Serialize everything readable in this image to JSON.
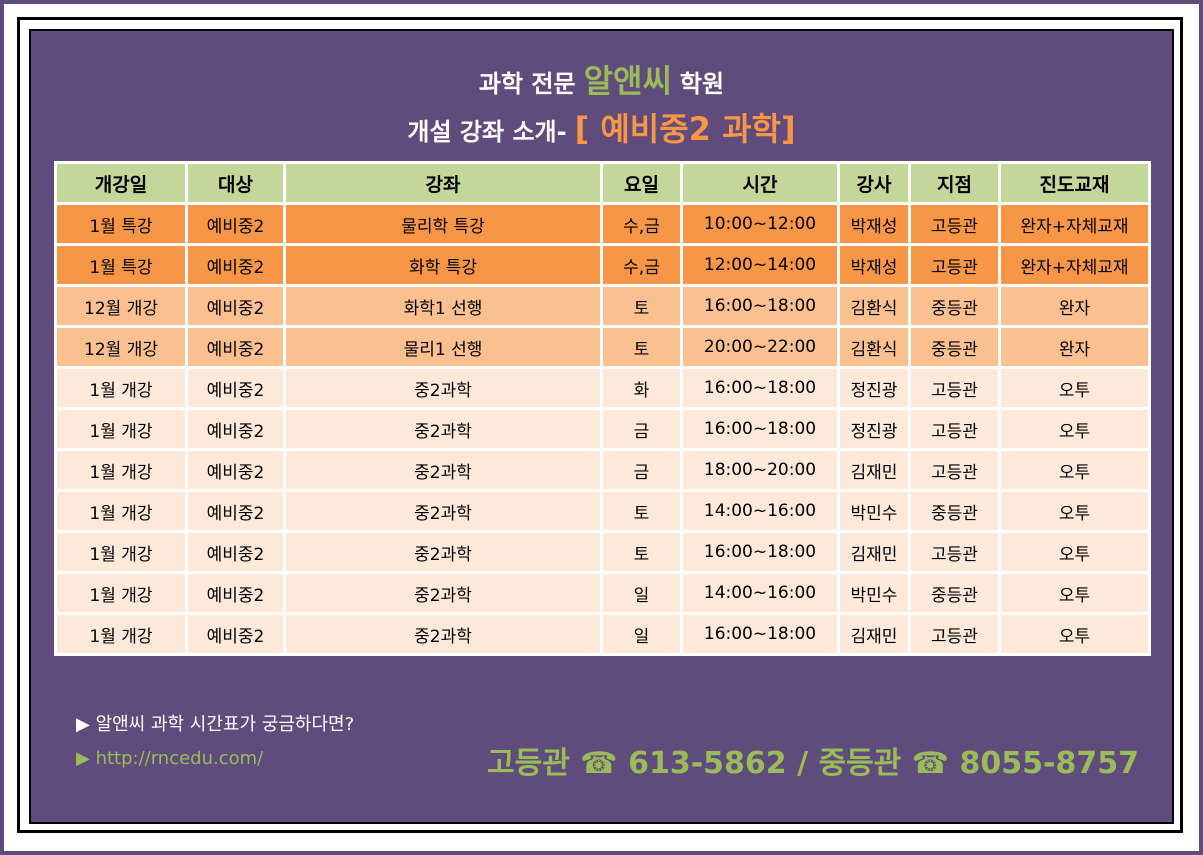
{
  "header": {
    "line1": [
      "과학 전문",
      "알앤씨",
      "학원"
    ],
    "line2": [
      "개설 강좌 소개-",
      "[ 예비중2 과학]"
    ]
  },
  "table": {
    "columns": [
      "개강일",
      "대상",
      "강좌",
      "요일",
      "시간",
      "강사",
      "지점",
      "진도교재"
    ],
    "header_color": "#c4d79b",
    "row_colors": [
      "#f79646",
      "#f79646",
      "#fac090",
      "#fac090",
      "#fde9d9",
      "#fde9d9",
      "#fde9d9",
      "#fde9d9",
      "#fde9d9",
      "#fde9d9",
      "#fde9d9"
    ],
    "rows": [
      [
        "1월 특강",
        "예비중2",
        "물리학 특강",
        "수,금",
        "10:00~12:00",
        "박재성",
        "고등관",
        "완자+자체교재"
      ],
      [
        "1월 특강",
        "예비중2",
        "화학 특강",
        "수,금",
        "12:00~14:00",
        "박재성",
        "고등관",
        "완자+자체교재"
      ],
      [
        "12월 개강",
        "예비중2",
        "화학1 선행",
        "토",
        "16:00~18:00",
        "김환식",
        "중등관",
        "완자"
      ],
      [
        "12월 개강",
        "예비중2",
        "물리1 선행",
        "토",
        "20:00~22:00",
        "김환식",
        "중등관",
        "완자"
      ],
      [
        "1월 개강",
        "예비중2",
        "중2과학",
        "화",
        "16:00~18:00",
        "정진광",
        "고등관",
        "오투"
      ],
      [
        "1월 개강",
        "예비중2",
        "중2과학",
        "금",
        "16:00~18:00",
        "정진광",
        "고등관",
        "오투"
      ],
      [
        "1월 개강",
        "예비중2",
        "중2과학",
        "금",
        "18:00~20:00",
        "김재민",
        "고등관",
        "오투"
      ],
      [
        "1월 개강",
        "예비중2",
        "중2과학",
        "토",
        "14:00~16:00",
        "박민수",
        "중등관",
        "오투"
      ],
      [
        "1월 개강",
        "예비중2",
        "중2과학",
        "토",
        "16:00~18:00",
        "김재민",
        "고등관",
        "오투"
      ],
      [
        "1월 개강",
        "예비중2",
        "중2과학",
        "일",
        "14:00~16:00",
        "박민수",
        "중등관",
        "오투"
      ],
      [
        "1월 개강",
        "예비중2",
        "중2과학",
        "일",
        "16:00~18:00",
        "김재민",
        "고등관",
        "오투"
      ]
    ]
  },
  "footer": {
    "question": "▶ 알앤씨 과학 시간표가 궁금하다면?",
    "url": "▶ http://rncedu.com/",
    "contact": "고등관 ☎ 613-5862 / 중등관 ☎ 8055-8757"
  }
}
